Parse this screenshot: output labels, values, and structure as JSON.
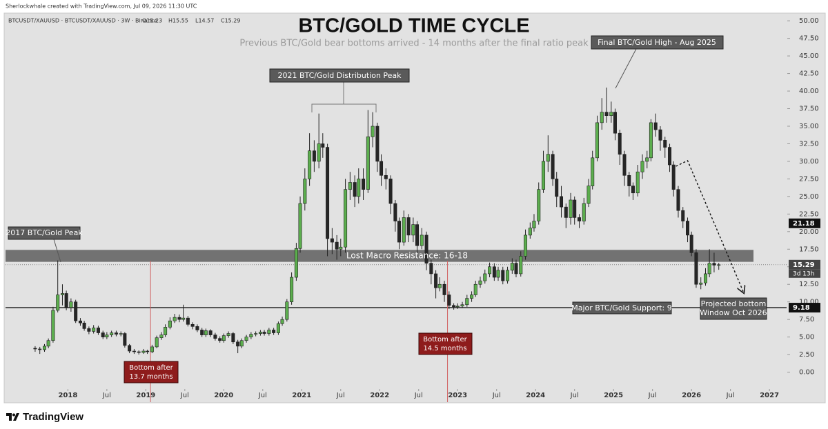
{
  "header": {
    "credit": "Sherlockwhale created with TradingView.com, Jul 09, 2026 11:30 UTC",
    "symbol": "BTCUSDT/XAUUSD · BTCUSDT/XAUUSD · 3W · Binance",
    "ohlc": [
      "O15.23",
      "H15.55",
      "L14.57",
      "C15.29"
    ]
  },
  "chart_data": {
    "type": "candlestick",
    "title": "BTC/GOLD TIME CYCLE",
    "subtitle": "Previous BTC/Gold bear bottoms arrived - 14 months after the final ratio peak",
    "x": [
      2017.58,
      2017.64,
      2017.7,
      2017.75,
      2017.81,
      2017.87,
      2017.93,
      2017.98,
      2018.04,
      2018.1,
      2018.16,
      2018.21,
      2018.27,
      2018.33,
      2018.39,
      2018.45,
      2018.5,
      2018.56,
      2018.62,
      2018.68,
      2018.73,
      2018.79,
      2018.85,
      2018.91,
      2018.97,
      2019.02,
      2019.08,
      2019.14,
      2019.2,
      2019.25,
      2019.31,
      2019.37,
      2019.43,
      2019.48,
      2019.54,
      2019.6,
      2019.66,
      2019.72,
      2019.77,
      2019.83,
      2019.89,
      2019.95,
      2020.0,
      2020.06,
      2020.12,
      2020.18,
      2020.23,
      2020.29,
      2020.35,
      2020.41,
      2020.47,
      2020.52,
      2020.58,
      2020.64,
      2020.7,
      2020.75,
      2020.81,
      2020.87,
      2020.93,
      2020.98,
      2021.04,
      2021.1,
      2021.16,
      2021.22,
      2021.27,
      2021.33,
      2021.39,
      2021.45,
      2021.5,
      2021.56,
      2021.62,
      2021.68,
      2021.73,
      2021.79,
      2021.85,
      2021.91,
      2021.97,
      2022.02,
      2022.08,
      2022.14,
      2022.2,
      2022.25,
      2022.31,
      2022.37,
      2022.43,
      2022.48,
      2022.54,
      2022.6,
      2022.66,
      2022.72,
      2022.77,
      2022.83,
      2022.89,
      2022.95,
      2023.0,
      2023.06,
      2023.12,
      2023.18,
      2023.23,
      2023.29,
      2023.35,
      2023.41,
      2023.47,
      2023.52,
      2023.58,
      2023.64,
      2023.7,
      2023.75,
      2023.81,
      2023.87,
      2023.93,
      2023.98,
      2024.04,
      2024.1,
      2024.16,
      2024.22,
      2024.27,
      2024.33,
      2024.39,
      2024.45,
      2024.5,
      2024.56,
      2024.62,
      2024.68,
      2024.73,
      2024.79,
      2024.85,
      2024.91,
      2024.97,
      2025.02,
      2025.08,
      2025.14,
      2025.2,
      2025.25,
      2025.31,
      2025.37,
      2025.43,
      2025.48,
      2025.54,
      2025.6,
      2025.66,
      2025.72,
      2025.77,
      2025.83,
      2025.89,
      2025.95,
      2026.0,
      2026.06,
      2026.12,
      2026.18,
      2026.23,
      2026.29,
      2026.35
    ],
    "open": [
      3.4,
      3.3,
      3.2,
      3.7,
      4.5,
      8.8,
      11.0,
      11.2,
      9.2,
      10.0,
      7.3,
      7.0,
      6.2,
      5.8,
      6.3,
      5.6,
      5.0,
      5.3,
      5.6,
      5.4,
      5.5,
      3.8,
      3.0,
      2.9,
      2.8,
      3.0,
      2.9,
      3.6,
      4.9,
      5.3,
      6.4,
      7.3,
      7.8,
      7.5,
      7.7,
      6.8,
      6.5,
      6.0,
      5.3,
      5.9,
      5.3,
      4.8,
      4.5,
      5.2,
      5.5,
      4.3,
      3.7,
      4.5,
      5.0,
      5.4,
      5.5,
      5.7,
      5.5,
      6.0,
      5.6,
      6.9,
      7.5,
      10.0,
      13.5,
      17.6,
      24.0,
      27.5,
      31.5,
      30.0,
      32.5,
      32.0,
      19.0,
      18.5,
      17.5,
      17.8,
      26.0,
      27.0,
      25.0,
      27.5,
      26.0,
      33.5,
      35.0,
      30.0,
      28.0,
      27.5,
      24.0,
      21.5,
      18.5,
      22.0,
      19.5,
      21.0,
      18.0,
      19.5,
      15.5,
      14.0,
      12.0,
      12.5,
      11.0,
      9.5,
      9.3,
      9.4,
      9.6,
      10.5,
      11.0,
      12.5,
      13.0,
      14.0,
      15.0,
      13.5,
      14.5,
      13.0,
      14.5,
      15.5,
      14.0,
      16.5,
      19.5,
      20.5,
      21.5,
      26.0,
      30.0,
      31.0,
      27.5,
      25.0,
      23.5,
      22.0,
      24.5,
      22.0,
      21.5,
      24.0,
      26.5,
      30.5,
      35.5,
      37.0,
      36.5,
      37.0,
      34.0,
      31.0,
      28.0,
      26.5,
      25.5,
      28.5,
      30.0,
      30.5,
      35.5,
      34.5,
      33.0,
      32.0,
      29.5,
      26.0,
      23.0,
      21.5,
      19.5,
      17.0,
      12.5,
      12.7,
      14.0,
      15.5,
      15.23
    ],
    "high": [
      3.7,
      3.6,
      4.0,
      4.8,
      9.3,
      15.9,
      12.5,
      11.6,
      10.5,
      10.3,
      7.7,
      7.3,
      6.5,
      6.7,
      6.6,
      5.9,
      5.7,
      5.9,
      5.9,
      5.8,
      5.7,
      4.0,
      3.3,
      3.1,
      3.3,
      3.2,
      3.9,
      5.2,
      5.7,
      6.8,
      7.8,
      8.3,
      8.2,
      9.6,
      8.0,
      7.1,
      6.8,
      6.3,
      6.2,
      6.1,
      5.6,
      5.1,
      5.5,
      5.8,
      5.7,
      4.6,
      4.8,
      5.3,
      5.7,
      5.8,
      6.0,
      6.0,
      6.3,
      6.3,
      7.2,
      7.9,
      10.4,
      14.2,
      18.4,
      25.0,
      29.0,
      34.0,
      33.0,
      36.8,
      34.0,
      32.5,
      20.5,
      19.5,
      19.0,
      27.5,
      28.5,
      28.0,
      29.0,
      29.0,
      37.3,
      37.0,
      35.5,
      31.0,
      29.0,
      28.0,
      24.5,
      22.0,
      23.0,
      22.5,
      22.0,
      21.5,
      20.5,
      20.0,
      16.0,
      14.5,
      13.5,
      13.0,
      11.5,
      9.8,
      9.8,
      10.0,
      11.0,
      11.5,
      13.0,
      13.6,
      14.6,
      15.6,
      15.5,
      15.0,
      15.0,
      15.0,
      16.2,
      16.0,
      17.2,
      20.3,
      21.3,
      22.5,
      27.0,
      31.5,
      33.7,
      31.5,
      28.5,
      26.5,
      24.0,
      25.5,
      25.0,
      22.5,
      24.8,
      27.5,
      31.5,
      36.5,
      39.0,
      40.5,
      38.5,
      37.5,
      34.5,
      31.5,
      28.5,
      27.0,
      29.5,
      31.0,
      31.5,
      36.0,
      36.8,
      35.0,
      33.5,
      32.5,
      30.0,
      26.5,
      23.5,
      22.0,
      20.0,
      17.5,
      13.5,
      14.8,
      17.5,
      17.0,
      15.55
    ],
    "low": [
      2.9,
      2.6,
      2.9,
      3.4,
      4.2,
      8.5,
      9.5,
      8.8,
      8.6,
      7.0,
      6.6,
      5.9,
      5.4,
      5.5,
      5.3,
      4.7,
      4.7,
      5.0,
      5.1,
      5.1,
      3.5,
      2.7,
      2.6,
      2.5,
      2.6,
      2.6,
      2.7,
      3.4,
      4.6,
      5.0,
      6.1,
      7.0,
      7.1,
      7.2,
      6.5,
      6.1,
      5.7,
      5.0,
      5.0,
      5.0,
      4.5,
      4.2,
      4.2,
      4.9,
      4.0,
      2.7,
      3.4,
      4.2,
      4.7,
      5.1,
      5.2,
      5.2,
      5.2,
      5.3,
      5.3,
      6.6,
      7.2,
      9.6,
      13.0,
      17.0,
      23.0,
      26.5,
      28.5,
      29.0,
      30.5,
      16.5,
      16.8,
      16.0,
      16.5,
      17.0,
      24.5,
      23.5,
      24.0,
      24.5,
      25.5,
      32.0,
      28.5,
      26.5,
      26.0,
      22.5,
      20.0,
      17.5,
      18.0,
      18.5,
      18.5,
      17.0,
      17.5,
      14.5,
      12.5,
      10.5,
      11.5,
      10.0,
      9.0,
      8.9,
      9.0,
      9.1,
      9.3,
      10.0,
      10.7,
      12.0,
      12.6,
      13.5,
      13.0,
      13.0,
      12.5,
      12.6,
      14.0,
      13.5,
      13.6,
      16.0,
      19.0,
      20.0,
      21.0,
      25.5,
      28.5,
      26.5,
      23.5,
      22.0,
      20.5,
      21.0,
      21.0,
      20.5,
      21.0,
      23.5,
      26.0,
      30.0,
      34.5,
      35.5,
      35.5,
      33.0,
      29.5,
      26.5,
      25.0,
      24.5,
      25.0,
      27.5,
      29.0,
      30.0,
      33.5,
      31.5,
      30.5,
      28.5,
      25.0,
      22.0,
      20.5,
      18.5,
      16.5,
      12.0,
      11.8,
      12.3,
      13.5,
      14.2,
      14.57
    ],
    "close": [
      3.3,
      3.2,
      3.7,
      4.5,
      8.8,
      11.0,
      11.2,
      9.2,
      10.0,
      7.3,
      7.0,
      6.2,
      5.8,
      6.3,
      5.6,
      5.0,
      5.3,
      5.6,
      5.4,
      5.5,
      3.8,
      3.0,
      2.9,
      2.8,
      3.0,
      2.9,
      3.6,
      4.9,
      5.3,
      6.4,
      7.3,
      7.8,
      7.5,
      7.7,
      6.8,
      6.5,
      6.0,
      5.3,
      5.9,
      5.3,
      4.8,
      4.5,
      5.2,
      5.5,
      4.3,
      3.7,
      4.5,
      5.0,
      5.4,
      5.5,
      5.7,
      5.5,
      6.0,
      5.6,
      6.9,
      7.5,
      10.0,
      13.5,
      17.6,
      24.0,
      27.5,
      31.5,
      30.0,
      32.5,
      32.0,
      19.0,
      18.5,
      17.5,
      17.8,
      26.0,
      27.0,
      25.0,
      27.5,
      26.0,
      33.5,
      35.0,
      30.0,
      28.0,
      27.5,
      24.0,
      21.5,
      18.5,
      22.0,
      19.5,
      21.0,
      18.0,
      19.5,
      15.5,
      14.0,
      12.0,
      12.5,
      11.0,
      9.5,
      9.3,
      9.4,
      9.6,
      10.5,
      11.0,
      12.5,
      13.0,
      14.0,
      15.0,
      13.5,
      14.5,
      13.0,
      14.5,
      15.5,
      14.0,
      16.5,
      19.5,
      20.5,
      21.5,
      26.0,
      30.0,
      31.0,
      27.5,
      25.0,
      23.5,
      22.0,
      24.5,
      22.0,
      21.5,
      24.0,
      26.5,
      30.5,
      35.5,
      37.0,
      36.5,
      37.0,
      34.0,
      31.0,
      28.0,
      26.5,
      25.5,
      28.5,
      30.0,
      30.5,
      35.5,
      34.5,
      33.0,
      32.0,
      29.5,
      26.0,
      23.0,
      21.5,
      19.5,
      17.0,
      12.5,
      12.7,
      14.0,
      15.5,
      15.23,
      15.29
    ],
    "colors": {
      "up": "#5cae4e",
      "down": "#262626"
    },
    "xlim": [
      2017.2,
      2027.22
    ],
    "xticks": [
      2018,
      {
        "value": 2018.5,
        "label": "Jul"
      },
      2019,
      {
        "value": 2019.5,
        "label": "Jul"
      },
      2020,
      {
        "value": 2020.5,
        "label": "Jul"
      },
      2021,
      {
        "value": 2021.5,
        "label": "Jul"
      },
      2022,
      {
        "value": 2022.5,
        "label": "Jul"
      },
      2023,
      {
        "value": 2023.5,
        "label": "Jul"
      },
      2024,
      {
        "value": 2024.5,
        "label": "Jul"
      },
      2025,
      {
        "value": 2025.5,
        "label": "Jul"
      },
      2026,
      {
        "value": 2026.5,
        "label": "Jul"
      },
      2027
    ],
    "ylim": [
      -2.2,
      50.8
    ],
    "yticks": [
      {
        "value": 0,
        "label": "0.00"
      },
      {
        "value": 2.5,
        "label": "2.50"
      },
      {
        "value": 5,
        "label": "5.00"
      },
      {
        "value": 7.5,
        "label": "7.50"
      },
      {
        "value": 10,
        "label": "10.00"
      },
      {
        "value": 12.5,
        "label": "12.50"
      },
      {
        "value": 15,
        "label": "15.00"
      },
      {
        "value": 17.5,
        "label": "17.50"
      },
      {
        "value": 20,
        "label": "20.00"
      },
      {
        "value": 22.5,
        "label": "22.50"
      },
      {
        "value": 25,
        "label": "25.00"
      },
      {
        "value": 27.5,
        "label": "27.50"
      },
      {
        "value": 30,
        "label": "30.00"
      },
      {
        "value": 32.5,
        "label": "32.50"
      },
      {
        "value": 35,
        "label": "35.00"
      },
      {
        "value": 37.5,
        "label": "37.50"
      },
      {
        "value": 40,
        "label": "40.00"
      },
      {
        "value": 42.5,
        "label": "42.50"
      },
      {
        "value": 45,
        "label": "45.00"
      },
      {
        "value": 47.5,
        "label": "47.50"
      },
      {
        "value": 50,
        "label": "50.00"
      }
    ],
    "resistance_zone": {
      "range": [
        15.7,
        17.4
      ],
      "label": "Lost Macro Resistance: 16-18"
    },
    "support": {
      "value": 9.18,
      "label": "Major BTC/Gold Support: 9"
    },
    "axis_tags": [
      21.18
    ],
    "countdown": "3d 13h",
    "annotations": [
      {
        "text": "2021 BTC/Gold Distribution Peak"
      },
      {
        "text": "Final BTC/Gold High - Aug 2025"
      },
      {
        "text": "2017 BTC/Gold Peak"
      },
      {
        "lines": [
          "Projected bottom",
          "Window Oct 2026"
        ]
      }
    ],
    "bottom_markers": [
      {
        "x": 2019.06,
        "lines": [
          "Bottom after",
          "13.7 months"
        ]
      },
      {
        "x": 2022.87,
        "lines": [
          "Bottom after",
          "14.5 months"
        ]
      }
    ],
    "projection": {
      "x": [
        2025.8,
        2025.95,
        2026.67
      ],
      "y": [
        29.3,
        30.1,
        11.3
      ]
    }
  },
  "footer": {
    "brand": "TradingView"
  }
}
